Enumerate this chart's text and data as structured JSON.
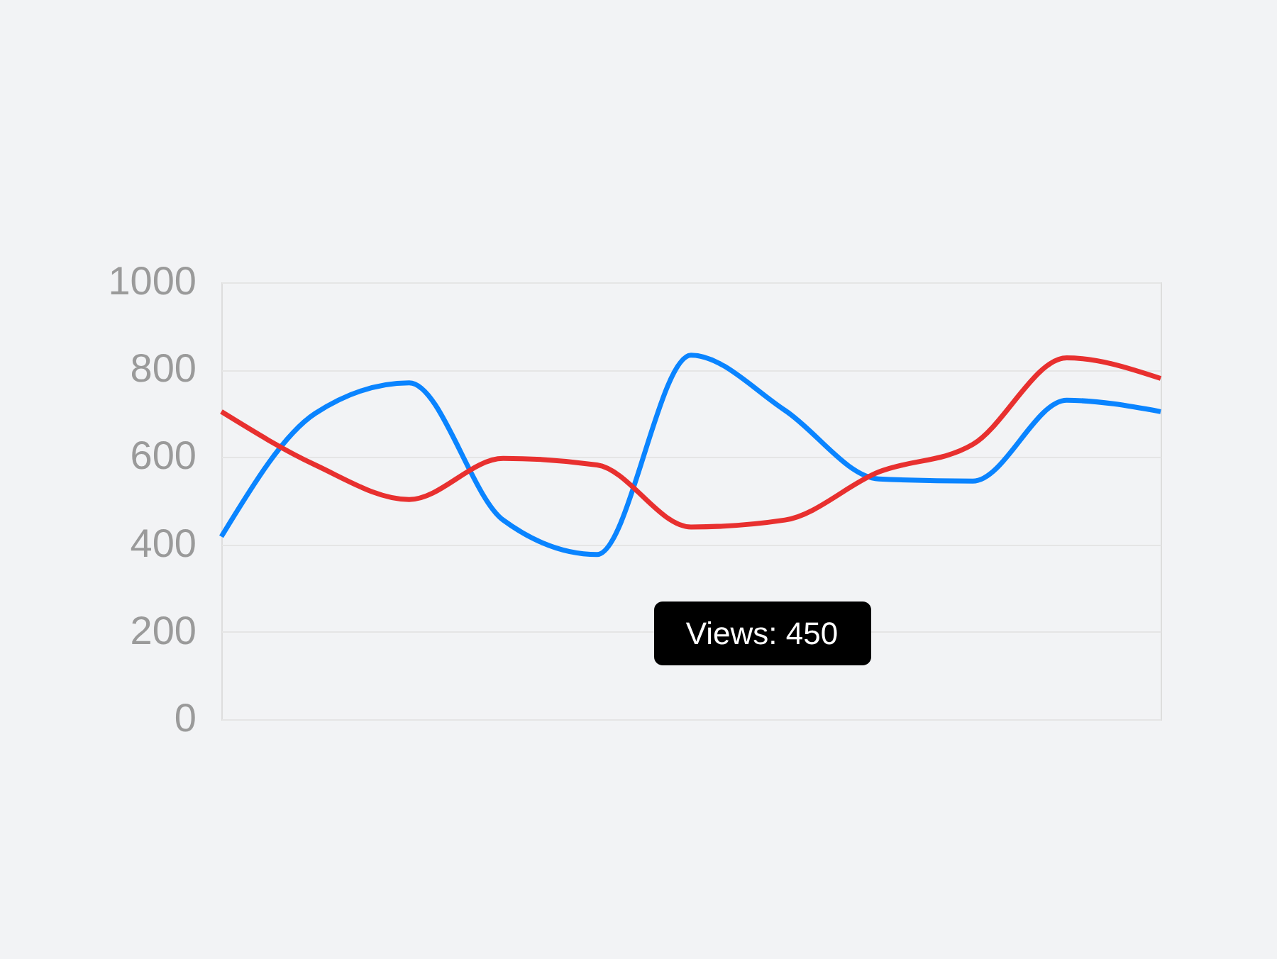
{
  "chart_data": {
    "type": "line",
    "categories": [
      null,
      null,
      null,
      null,
      null,
      null,
      null,
      null,
      null,
      null,
      null
    ],
    "series": [
      {
        "color": "#0a84ff",
        "values": [
          418,
          700,
          770,
          456,
          377,
          833,
          707,
          550,
          545,
          730,
          704
        ]
      },
      {
        "color": "#e8302f",
        "values": [
          704,
          582,
          503,
          597,
          582,
          440,
          456,
          566,
          629,
          827,
          780
        ]
      }
    ],
    "ylim": [
      0,
      1000
    ],
    "yticks": [
      0,
      200,
      400,
      600,
      800,
      {
        "value": 1000,
        "label": "1000"
      }
    ],
    "grid": "y",
    "legend": false,
    "tick_labels": "y",
    "marker": "none",
    "line_style": "solid",
    "annotations": [
      "Views: 450"
    ]
  }
}
